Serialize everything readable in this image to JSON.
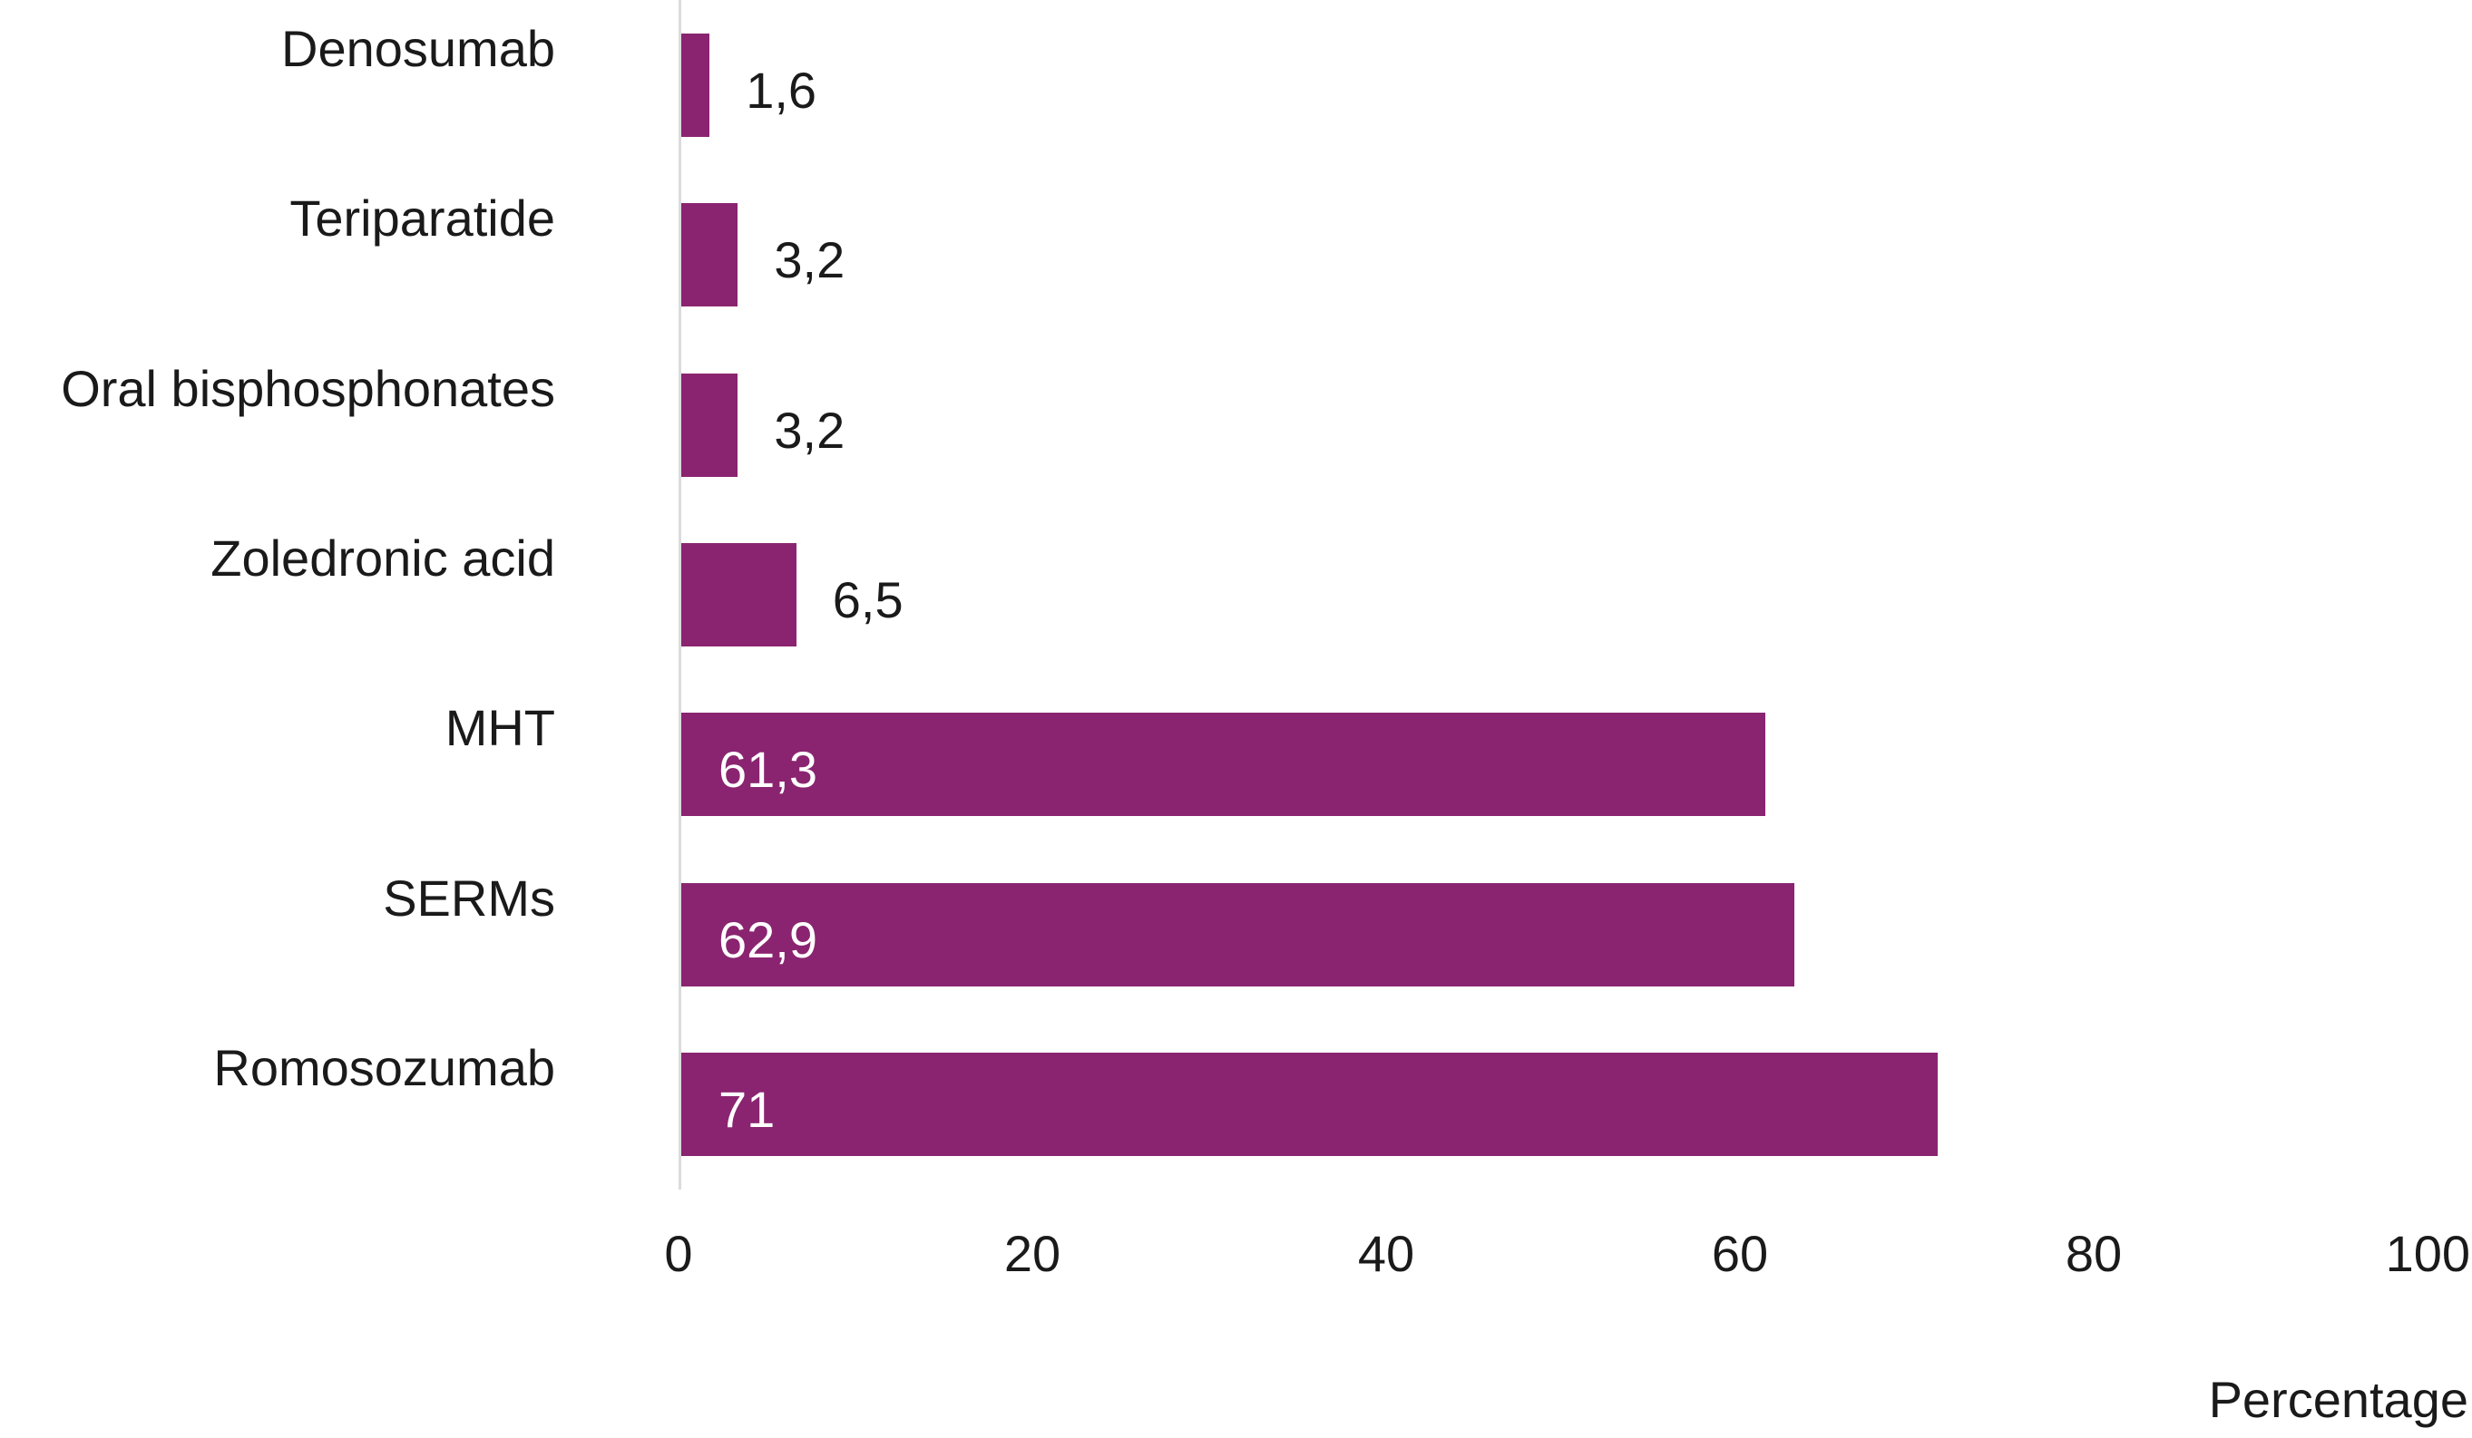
{
  "chart_data": {
    "type": "bar",
    "orientation": "horizontal",
    "title": "",
    "xlabel": "Percentage",
    "categories": [
      "Denosumab",
      "Teriparatide",
      "Oral bisphosphonates",
      "Zoledronic acid",
      "MHT",
      "SERMs",
      "Romosozumab"
    ],
    "values": [
      1.6,
      3.2,
      3.2,
      6.5,
      61.3,
      62.9,
      71
    ],
    "value_labels": [
      "1,6",
      "3,2",
      "3,2",
      "6,5",
      "61,3",
      "62,9",
      "71"
    ],
    "xlim": [
      0,
      100
    ],
    "xticks": [
      0,
      20,
      40,
      60,
      80,
      100
    ],
    "grid": false,
    "legend": false,
    "colors": {
      "bar": "#8a2470",
      "axis_line": "#dbdbdb",
      "text": "#1a1a1a",
      "value_label_inside": "#ffffff"
    }
  }
}
